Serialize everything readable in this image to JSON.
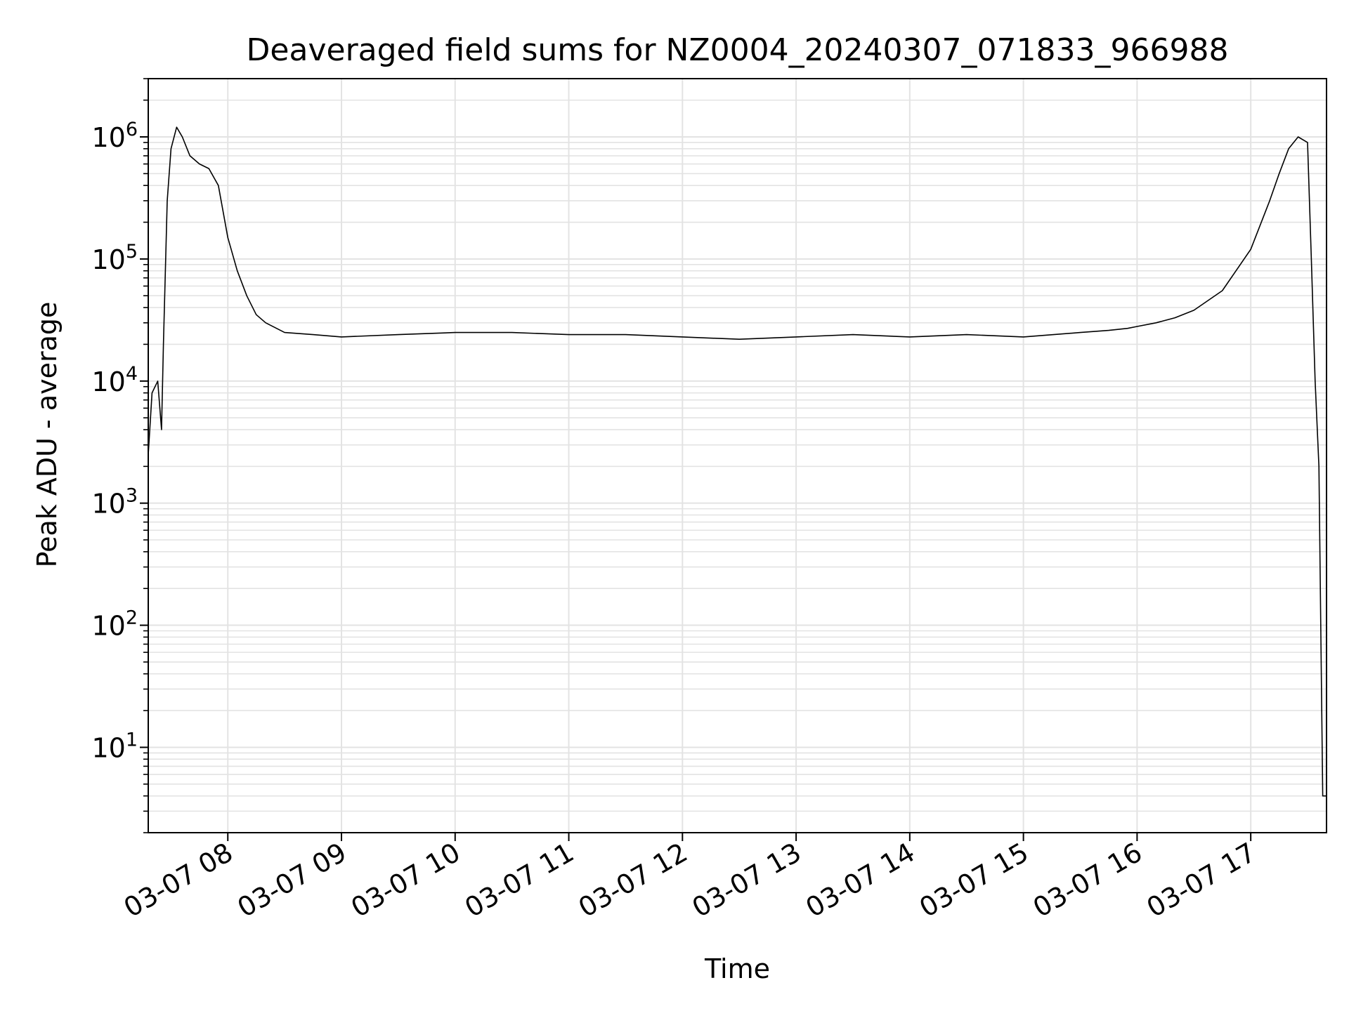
{
  "chart_data": {
    "type": "line",
    "title": "Deaveraged field sums for NZ0004_20240307_071833_966988",
    "xlabel": "Time",
    "ylabel": "Peak ADU - average",
    "yscale": "log",
    "ylim": [
      2,
      3000000
    ],
    "xlim": [
      "2024-03-07T07:18:00",
      "2024-03-07T17:40:00"
    ],
    "grid": "major and minor",
    "line_color": "#000000",
    "x_tick_labels": [
      "03-07 08",
      "03-07 09",
      "03-07 10",
      "03-07 11",
      "03-07 12",
      "03-07 13",
      "03-07 14",
      "03-07 15",
      "03-07 16",
      "03-07 17"
    ],
    "x_tick_values": [
      "2024-03-07T08:00",
      "2024-03-07T09:00",
      "2024-03-07T10:00",
      "2024-03-07T11:00",
      "2024-03-07T12:00",
      "2024-03-07T13:00",
      "2024-03-07T14:00",
      "2024-03-07T15:00",
      "2024-03-07T16:00",
      "2024-03-07T17:00"
    ],
    "y_tick_values": [
      10,
      100,
      1000,
      10000,
      100000,
      1000000
    ],
    "y_tick_labels": [
      {
        "base": "10",
        "exp": "1"
      },
      {
        "base": "10",
        "exp": "2"
      },
      {
        "base": "10",
        "exp": "3"
      },
      {
        "base": "10",
        "exp": "4"
      },
      {
        "base": "10",
        "exp": "5"
      },
      {
        "base": "10",
        "exp": "6"
      }
    ],
    "series": [
      {
        "x": [
          "2024-03-07T07:18",
          "2024-03-07T07:20",
          "2024-03-07T07:23",
          "2024-03-07T07:25",
          "2024-03-07T07:26",
          "2024-03-07T07:28",
          "2024-03-07T07:30",
          "2024-03-07T07:33",
          "2024-03-07T07:36",
          "2024-03-07T07:40",
          "2024-03-07T07:45",
          "2024-03-07T07:50",
          "2024-03-07T07:55",
          "2024-03-07T08:00",
          "2024-03-07T08:05",
          "2024-03-07T08:10",
          "2024-03-07T08:15",
          "2024-03-07T08:20",
          "2024-03-07T08:30",
          "2024-03-07T08:45",
          "2024-03-07T09:00",
          "2024-03-07T09:30",
          "2024-03-07T10:00",
          "2024-03-07T10:30",
          "2024-03-07T11:00",
          "2024-03-07T11:30",
          "2024-03-07T12:00",
          "2024-03-07T12:30",
          "2024-03-07T13:00",
          "2024-03-07T13:30",
          "2024-03-07T14:00",
          "2024-03-07T14:30",
          "2024-03-07T15:00",
          "2024-03-07T15:30",
          "2024-03-07T15:45",
          "2024-03-07T15:55",
          "2024-03-07T16:00",
          "2024-03-07T16:10",
          "2024-03-07T16:20",
          "2024-03-07T16:30",
          "2024-03-07T16:45",
          "2024-03-07T17:00",
          "2024-03-07T17:10",
          "2024-03-07T17:15",
          "2024-03-07T17:20",
          "2024-03-07T17:25",
          "2024-03-07T17:30",
          "2024-03-07T17:32",
          "2024-03-07T17:34",
          "2024-03-07T17:36",
          "2024-03-07T17:38",
          "2024-03-07T17:40"
        ],
        "y": [
          2500,
          8000,
          10000,
          4000,
          20000,
          300000,
          800000,
          1200000,
          1000000,
          700000,
          600000,
          550000,
          400000,
          150000,
          80000,
          50000,
          35000,
          30000,
          25000,
          24000,
          23000,
          24000,
          25000,
          25000,
          24000,
          24000,
          23000,
          22000,
          23000,
          24000,
          23000,
          24000,
          23000,
          25000,
          26000,
          27000,
          28000,
          30000,
          33000,
          38000,
          55000,
          120000,
          300000,
          500000,
          800000,
          1000000,
          900000,
          100000,
          10000,
          2000,
          4,
          4
        ]
      }
    ]
  }
}
